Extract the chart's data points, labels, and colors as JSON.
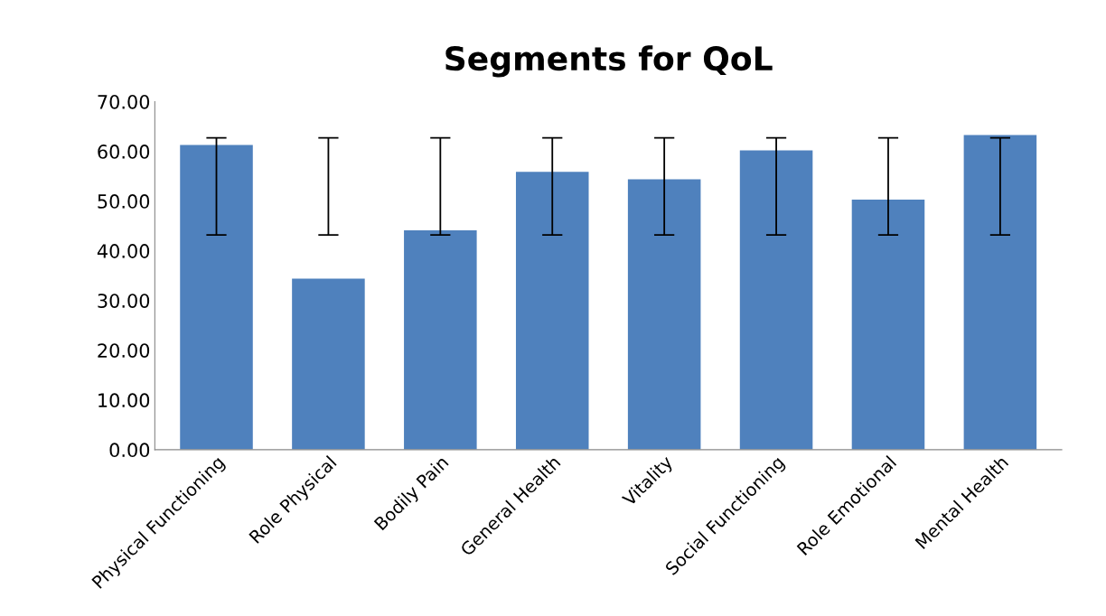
{
  "chart_data": {
    "type": "bar",
    "title": "Segments for QoL",
    "categories": [
      "Physical Functioning",
      "Role Physical",
      "Bodily Pain",
      "General Health",
      "Vitality",
      "Social Functioning",
      "Role Emotional",
      "Mental Health"
    ],
    "values": [
      61.3,
      34.4,
      44.1,
      55.9,
      54.4,
      60.2,
      50.3,
      63.3
    ],
    "color": "#4f81bd",
    "errors": [
      [
        43.2,
        62.7
      ],
      [
        43.2,
        62.7
      ],
      [
        43.2,
        62.7
      ],
      [
        43.2,
        62.7
      ],
      [
        43.2,
        62.7
      ],
      [
        43.2,
        62.7
      ],
      [
        43.2,
        62.7
      ],
      [
        43.2,
        62.7
      ]
    ],
    "ylim": [
      0,
      70
    ],
    "yticks": [
      {
        "value": 0,
        "label": "0.00"
      },
      {
        "value": 10,
        "label": "10.00"
      },
      {
        "value": 20,
        "label": "20.00"
      },
      {
        "value": 30,
        "label": "30.00"
      },
      {
        "value": 40,
        "label": "40.00"
      },
      {
        "value": 50,
        "label": "50.00"
      },
      {
        "value": 60,
        "label": "60.00"
      },
      {
        "value": 70,
        "label": "70.00"
      }
    ],
    "grid": false,
    "legend": false
  }
}
